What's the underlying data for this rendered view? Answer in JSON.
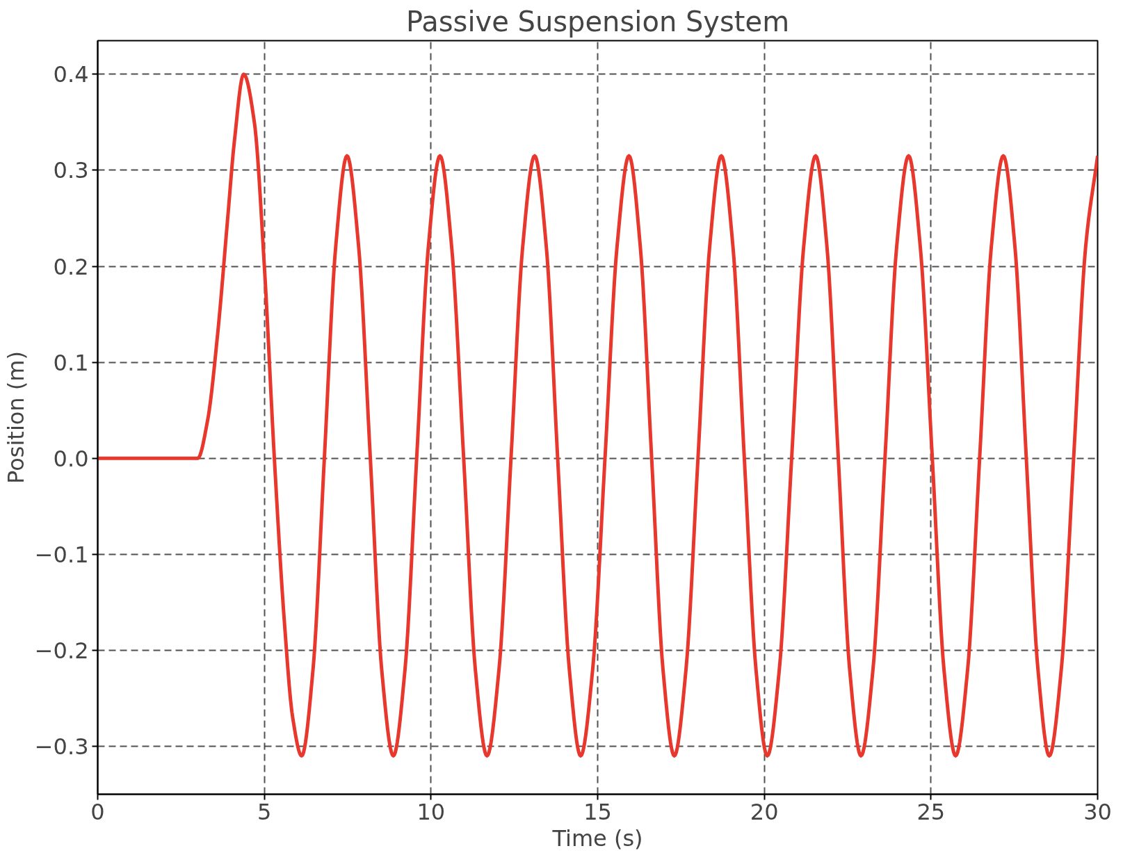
{
  "chart_data": {
    "type": "line",
    "title": "Passive Suspension System",
    "xlabel": "Time (s)",
    "ylabel": "Position (m)",
    "xlim": [
      0,
      30
    ],
    "ylim": [
      -0.35,
      0.435
    ],
    "xticks": [
      0,
      5,
      10,
      15,
      20,
      25,
      30
    ],
    "yticks": [
      {
        "value": -0.3,
        "label": "−0.3"
      },
      {
        "value": -0.2,
        "label": "−0.2"
      },
      {
        "value": -0.1,
        "label": "−0.1"
      },
      {
        "value": 0,
        "label": "0.0"
      },
      0.1,
      0.2,
      0.3,
      0.4
    ],
    "grid": true,
    "line_style": "solid",
    "marker": "none",
    "series": [
      {
        "color": "#e8372c",
        "x": [
          0,
          3.0,
          3.3,
          3.6,
          3.9,
          4.1,
          4.38,
          4.7,
          5.0,
          5.3,
          5.6,
          5.85,
          6.12,
          6.46,
          6.8,
          7.14,
          7.48,
          7.83,
          8.18,
          8.52,
          8.87,
          9.22,
          9.57,
          9.92,
          10.27,
          10.62,
          10.98,
          11.33,
          11.68,
          12.04,
          12.4,
          12.75,
          13.11,
          13.46,
          13.8,
          14.15,
          14.49,
          14.85,
          15.22,
          15.58,
          15.94,
          16.28,
          16.62,
          16.96,
          17.3,
          17.65,
          18.01,
          18.36,
          18.71,
          19.06,
          19.4,
          19.75,
          20.09,
          20.45,
          20.82,
          21.18,
          21.54,
          21.88,
          22.22,
          22.56,
          22.9,
          23.26,
          23.62,
          23.97,
          24.33,
          24.68,
          25.04,
          25.39,
          25.74,
          26.1,
          26.46,
          26.81,
          27.17,
          27.52,
          27.86,
          28.21,
          28.55,
          28.91,
          29.28,
          29.64,
          30.0
        ],
        "values": [
          0,
          0,
          0.04,
          0.13,
          0.25,
          0.33,
          0.4,
          0.35,
          0.2,
          0.0,
          -0.17,
          -0.27,
          -0.31,
          -0.22,
          0,
          0.22,
          0.315,
          0.22,
          0,
          -0.22,
          -0.31,
          -0.22,
          0,
          0.22,
          0.315,
          0.22,
          0,
          -0.22,
          -0.31,
          -0.22,
          0,
          0.22,
          0.315,
          0.22,
          0,
          -0.22,
          -0.31,
          -0.22,
          0,
          0.22,
          0.315,
          0.22,
          0,
          -0.22,
          -0.31,
          -0.22,
          0,
          0.22,
          0.315,
          0.22,
          0,
          -0.22,
          -0.31,
          -0.22,
          0,
          0.22,
          0.315,
          0.22,
          0,
          -0.22,
          -0.31,
          -0.22,
          0,
          0.22,
          0.315,
          0.22,
          0,
          -0.22,
          -0.31,
          -0.22,
          0,
          0.22,
          0.315,
          0.22,
          0,
          -0.22,
          -0.31,
          -0.22,
          0,
          0.22,
          0.315
        ]
      }
    ]
  }
}
